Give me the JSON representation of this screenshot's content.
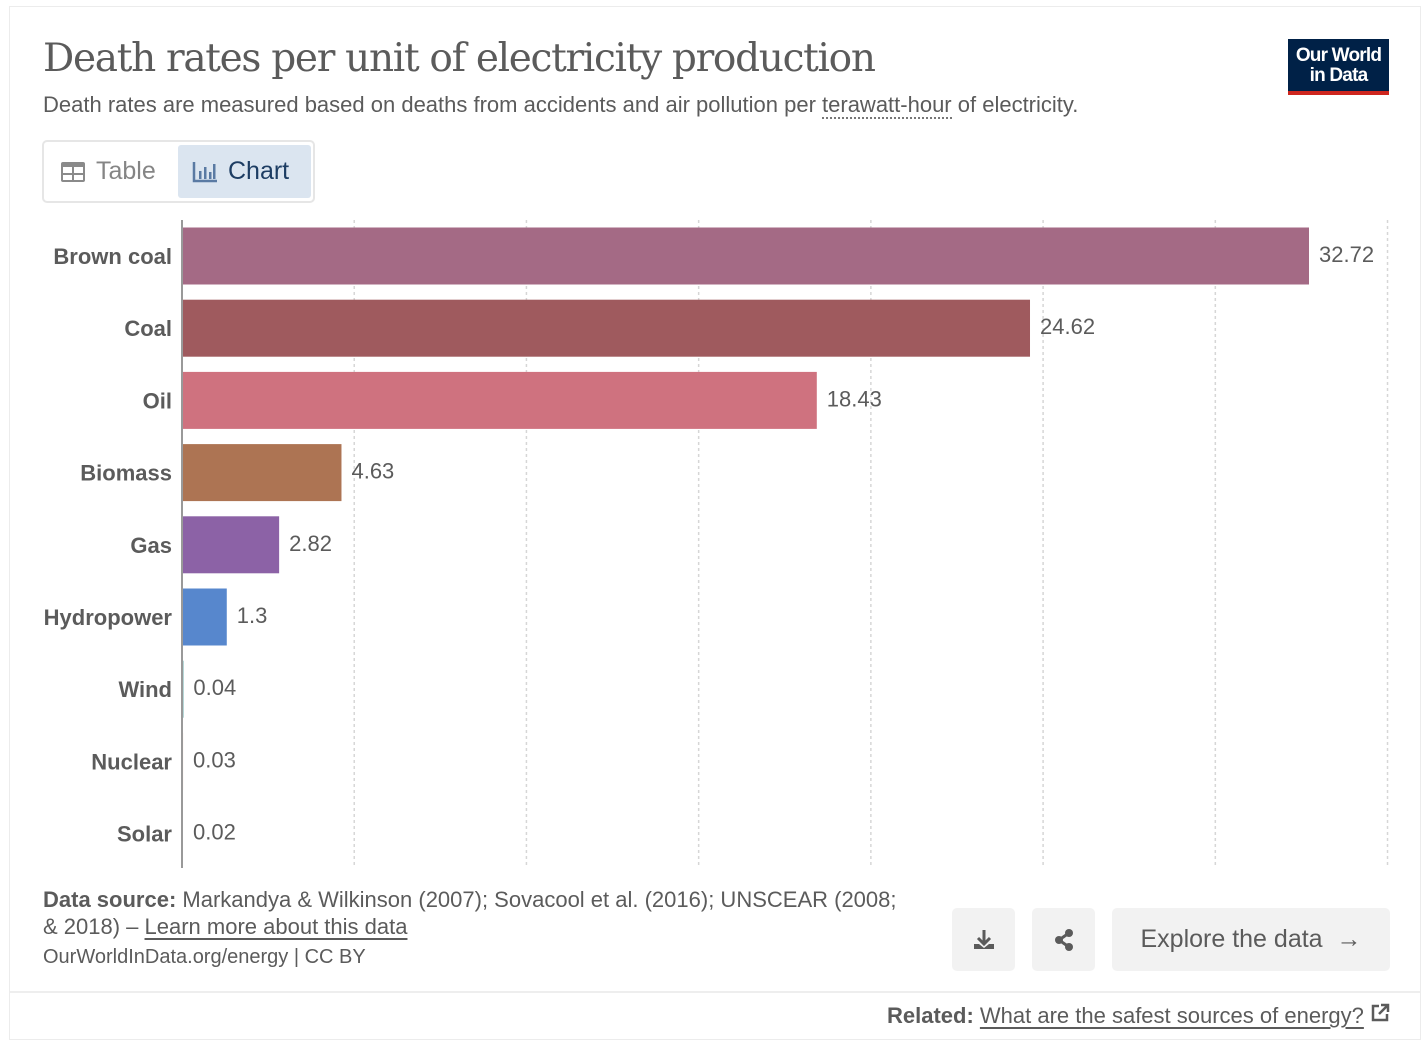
{
  "header": {
    "title": "Death rates per unit of electricity production",
    "subtitle_pre": "Death rates are measured based on deaths from accidents and air pollution per ",
    "subtitle_term": "terawatt-hour",
    "subtitle_post": " of electricity.",
    "logo_line1": "Our World",
    "logo_line2": "in Data"
  },
  "tabs": {
    "table": "Table",
    "chart": "Chart",
    "active": "chart"
  },
  "chart_data": {
    "type": "bar",
    "orientation": "horizontal",
    "title": "Death rates per unit of electricity production",
    "categories": [
      "Brown coal",
      "Coal",
      "Oil",
      "Biomass",
      "Gas",
      "Hydropower",
      "Wind",
      "Nuclear",
      "Solar"
    ],
    "values": [
      32.72,
      24.62,
      18.43,
      4.63,
      2.82,
      1.3,
      0.04,
      0.03,
      0.02
    ],
    "value_labels": [
      "32.72",
      "24.62",
      "18.43",
      "4.63",
      "2.82",
      "1.3",
      "0.04",
      "0.03",
      "0.02"
    ],
    "colors": [
      "#a46a85",
      "#9f5a5e",
      "#cf727f",
      "#ad7453",
      "#8c62a6",
      "#5787cd",
      "#3d9a9a",
      "#c97f3d",
      "#d9b53a"
    ],
    "xlim": [
      0,
      35
    ],
    "grid_step": 5,
    "grid": true,
    "xlabel": "",
    "ylabel": ""
  },
  "footer": {
    "source_label": "Data source:",
    "source_text": " Markandya & Wilkinson (2007); Sovacool et al. (2016); UNSCEAR (2008; & 2018) – ",
    "learn_more": "Learn more about this data",
    "url": "OurWorldInData.org/energy | CC BY",
    "explore": "Explore the data",
    "explore_arrow": "→",
    "related_label": "Related:",
    "related_link": "What are the safest sources of energy?"
  }
}
